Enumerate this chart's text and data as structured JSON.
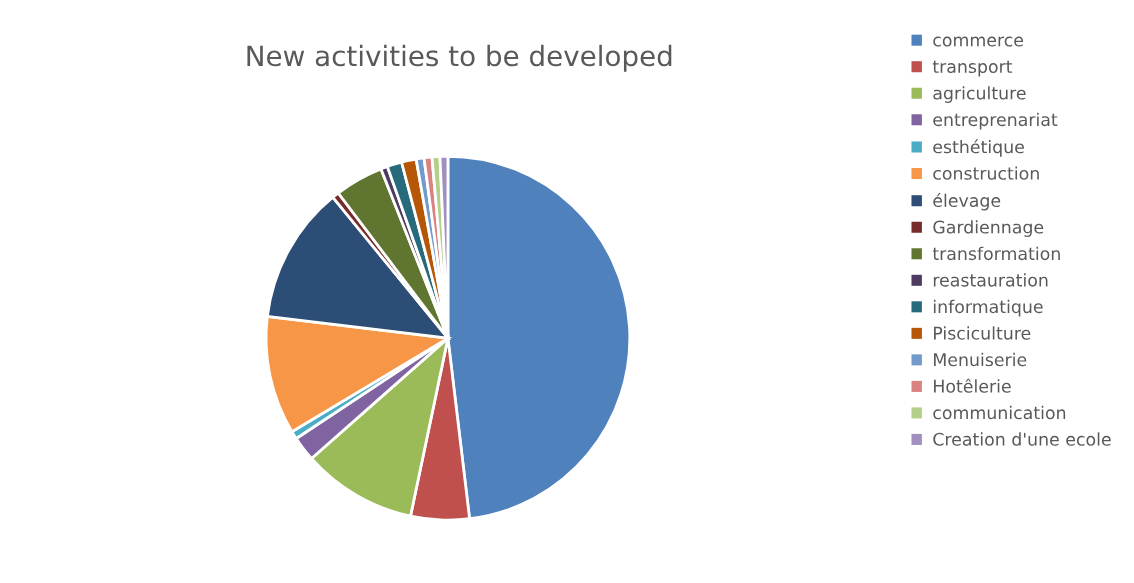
{
  "chart_data": {
    "type": "pie",
    "title": "New activities to be developed",
    "categories": [
      "commerce",
      "transport",
      "agriculture",
      "entreprenariat",
      "esthétique",
      "construction",
      "élevage",
      "Gardiennage",
      "transformation",
      "reastauration",
      "informatique",
      "Pisciculture",
      "Menuiserie",
      "Hotêlerie",
      "communication",
      "Creation d'une ecole"
    ],
    "values": [
      48.1,
      5.2,
      10.2,
      2.2,
      0.7,
      10.5,
      12.2,
      0.6,
      4.3,
      0.6,
      1.3,
      1.3,
      0.7,
      0.7,
      0.7,
      0.7
    ],
    "colors": [
      "#4f81bd",
      "#c0504d",
      "#9bbb59",
      "#8064a2",
      "#4bacc6",
      "#f79646",
      "#2c4d75",
      "#772c2a",
      "#5f7530",
      "#4d3b62",
      "#276a7c",
      "#b65708",
      "#729aca",
      "#d9827f",
      "#b4cf8a",
      "#a18fbf"
    ],
    "legend": "right"
  }
}
